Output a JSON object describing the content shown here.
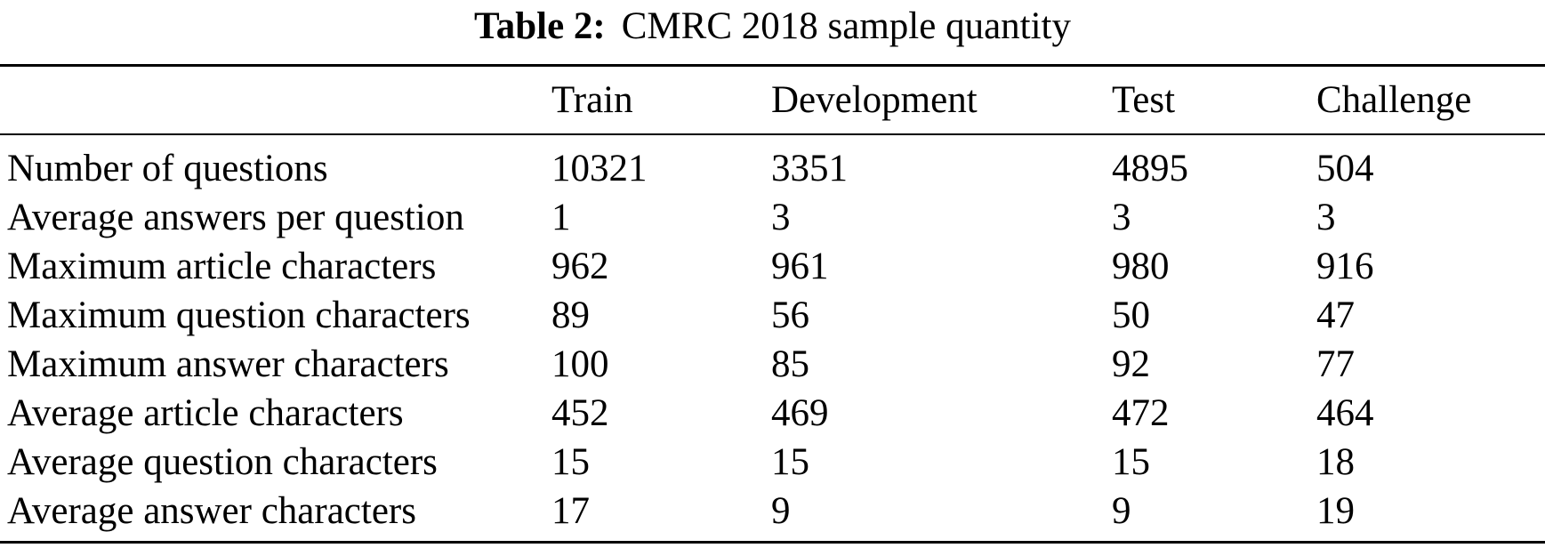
{
  "caption": {
    "label": "Table 2:",
    "title": "CMRC 2018 sample quantity"
  },
  "table": {
    "columns": [
      "",
      "Train",
      "Development",
      "Test",
      "Challenge"
    ],
    "rows": [
      {
        "label": "Number of questions",
        "values": [
          "10321",
          "3351",
          "4895",
          "504"
        ]
      },
      {
        "label": "Average answers per question",
        "values": [
          "1",
          "3",
          "3",
          "3"
        ]
      },
      {
        "label": "Maximum article characters",
        "values": [
          "962",
          "961",
          "980",
          "916"
        ]
      },
      {
        "label": "Maximum question characters",
        "values": [
          "89",
          "56",
          "50",
          "47"
        ]
      },
      {
        "label": "Maximum answer characters",
        "values": [
          "100",
          "85",
          "92",
          "77"
        ]
      },
      {
        "label": "Average article characters",
        "values": [
          "452",
          "469",
          "472",
          "464"
        ]
      },
      {
        "label": "Average question characters",
        "values": [
          "15",
          "15",
          "15",
          "18"
        ]
      },
      {
        "label": "Average answer characters",
        "values": [
          "17",
          "9",
          "9",
          "19"
        ]
      }
    ]
  },
  "colors": {
    "background": "#ffffff",
    "text": "#000000",
    "rule": "#000000"
  }
}
